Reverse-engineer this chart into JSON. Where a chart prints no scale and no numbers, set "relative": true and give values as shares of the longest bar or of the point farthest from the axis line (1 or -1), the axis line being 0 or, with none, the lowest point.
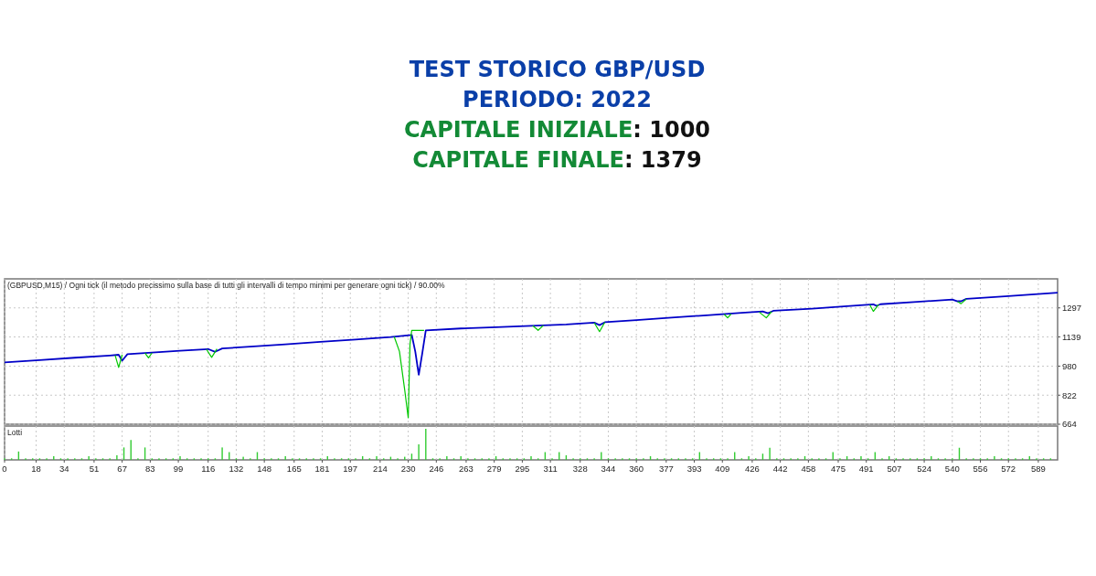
{
  "chart_data": [
    {
      "type": "line",
      "title": "TEST STORICO GBP/USD\nPERIODO: 2022",
      "subtitle": "(GBPUSD,M15) / Ogni tick (il metodo precissimo sulla base di tutti gli intervalli di tempo minimi per generare ogni tick) / 90.00%",
      "annotations": [
        "CAPITALE INIZIALE: 1000",
        "CAPITALE FINALE: 1379"
      ],
      "xlim": [
        0,
        600
      ],
      "xticks": [
        0,
        18,
        34,
        51,
        67,
        83,
        99,
        116,
        132,
        148,
        165,
        181,
        197,
        214,
        230,
        246,
        263,
        279,
        295,
        311,
        328,
        344,
        360,
        377,
        393,
        409,
        426,
        442,
        458,
        475,
        491,
        507,
        524,
        540,
        556,
        572,
        589
      ],
      "ylim": [
        664,
        1455
      ],
      "yticks": [
        664,
        822,
        980,
        1139,
        1297
      ],
      "grid": true,
      "tick_labels": "y",
      "marker": "none",
      "series": [
        {
          "color": "#0000c8",
          "x": [
            0,
            20,
            40,
            60,
            65,
            67,
            70,
            80,
            100,
            116,
            120,
            124,
            140,
            160,
            180,
            200,
            220,
            232,
            234,
            236,
            238,
            240,
            260,
            280,
            300,
            320,
            336,
            339,
            342,
            360,
            380,
            400,
            420,
            432,
            435,
            438,
            460,
            480,
            495,
            497,
            499,
            520,
            540,
            543,
            545,
            548,
            570,
            600
          ],
          "values": [
            1000,
            1013,
            1026,
            1038,
            1042,
            1010,
            1045,
            1051,
            1064,
            1073,
            1058,
            1076,
            1086,
            1099,
            1112,
            1125,
            1138,
            1150,
            1060,
            933,
            1050,
            1175,
            1185,
            1192,
            1199,
            1207,
            1217,
            1203,
            1219,
            1231,
            1244,
            1257,
            1270,
            1278,
            1268,
            1281,
            1293,
            1306,
            1316,
            1308,
            1317,
            1330,
            1342,
            1333,
            1333,
            1346,
            1360,
            1380
          ]
        },
        {
          "color": "#00c800",
          "x": [
            63,
            65,
            67
          ],
          "values": [
            1039,
            973,
            1042
          ]
        },
        {
          "color": "#00c800",
          "x": [
            80,
            82,
            84
          ],
          "values": [
            1051,
            1025,
            1052
          ]
        },
        {
          "color": "#00c800",
          "x": [
            115,
            118,
            121
          ],
          "values": [
            1072,
            1028,
            1074
          ]
        },
        {
          "color": "#00c800",
          "x": [
            222,
            225,
            228,
            230,
            231,
            232,
            239
          ],
          "values": [
            1140,
            1060,
            850,
            699,
            1100,
            1175,
            1175
          ]
        },
        {
          "color": "#00c800",
          "x": [
            301,
            304,
            307
          ],
          "values": [
            1200,
            1175,
            1202
          ]
        },
        {
          "color": "#00c800",
          "x": [
            336,
            339,
            342
          ],
          "values": [
            1216,
            1168,
            1219
          ]
        },
        {
          "color": "#00c800",
          "x": [
            410,
            412,
            414
          ],
          "values": [
            1262,
            1243,
            1264
          ]
        },
        {
          "color": "#00c800",
          "x": [
            430,
            434,
            437
          ],
          "values": [
            1274,
            1243,
            1277
          ]
        },
        {
          "color": "#00c800",
          "x": [
            493,
            495,
            498
          ],
          "values": [
            1313,
            1278,
            1315
          ]
        },
        {
          "color": "#00c800",
          "x": [
            543,
            545,
            548
          ],
          "values": [
            1332,
            1320,
            1345
          ]
        }
      ]
    },
    {
      "type": "bar",
      "ylabel": "Lotti",
      "relative": true,
      "color": "#33cc33",
      "xlim": [
        0,
        600
      ],
      "xticks": [
        0,
        18,
        34,
        51,
        67,
        83,
        99,
        116,
        132,
        148,
        165,
        181,
        197,
        214,
        230,
        246,
        263,
        279,
        295,
        311,
        328,
        344,
        360,
        377,
        393,
        409,
        426,
        442,
        458,
        475,
        491,
        507,
        524,
        540,
        556,
        572,
        589
      ],
      "grid": "x",
      "tick_labels": "x",
      "x": [
        0,
        4,
        8,
        12,
        16,
        20,
        24,
        28,
        32,
        36,
        40,
        44,
        48,
        52,
        56,
        60,
        64,
        68,
        72,
        76,
        80,
        84,
        88,
        92,
        96,
        100,
        104,
        108,
        112,
        116,
        120,
        124,
        128,
        132,
        136,
        140,
        144,
        148,
        152,
        156,
        160,
        164,
        168,
        172,
        176,
        180,
        184,
        188,
        192,
        196,
        200,
        204,
        208,
        212,
        216,
        220,
        224,
        228,
        232,
        236,
        240,
        244,
        248,
        252,
        256,
        260,
        264,
        268,
        272,
        276,
        280,
        284,
        288,
        292,
        296,
        300,
        304,
        308,
        312,
        316,
        320,
        324,
        328,
        332,
        336,
        340,
        344,
        348,
        352,
        356,
        360,
        364,
        368,
        372,
        376,
        380,
        384,
        388,
        392,
        396,
        400,
        404,
        408,
        412,
        416,
        420,
        424,
        428,
        432,
        436,
        440,
        444,
        448,
        452,
        456,
        460,
        464,
        468,
        472,
        476,
        480,
        484,
        488,
        492,
        496,
        500,
        504,
        508,
        512,
        516,
        520,
        524,
        528,
        532,
        536,
        540,
        544,
        548,
        552,
        556,
        560,
        564,
        568,
        572,
        576,
        580,
        584,
        588,
        592,
        596
      ],
      "values": [
        0.05,
        0.05,
        0.27,
        0.05,
        0.05,
        0.05,
        0.05,
        0.12,
        0.05,
        0.05,
        0.05,
        0.05,
        0.12,
        0.05,
        0.05,
        0.05,
        0.15,
        0.4,
        0.64,
        0.05,
        0.4,
        0.05,
        0.05,
        0.05,
        0.05,
        0.12,
        0.05,
        0.05,
        0.05,
        0.05,
        0.05,
        0.4,
        0.25,
        0.05,
        0.1,
        0.05,
        0.25,
        0.05,
        0.05,
        0.05,
        0.12,
        0.05,
        0.05,
        0.05,
        0.05,
        0.05,
        0.12,
        0.05,
        0.05,
        0.05,
        0.05,
        0.12,
        0.05,
        0.12,
        0.05,
        0.1,
        0.05,
        0.1,
        0.2,
        0.5,
        1,
        0.05,
        0.05,
        0.12,
        0.05,
        0.12,
        0.05,
        0.05,
        0.05,
        0.05,
        0.12,
        0.05,
        0.05,
        0.05,
        0.05,
        0.12,
        0.05,
        0.25,
        0.05,
        0.25,
        0.15,
        0.05,
        0.05,
        0.05,
        0.05,
        0.25,
        0.05,
        0.05,
        0.05,
        0.05,
        0.05,
        0.05,
        0.12,
        0.05,
        0.05,
        0.05,
        0.05,
        0.05,
        0.05,
        0.25,
        0.05,
        0.05,
        0.05,
        0.05,
        0.25,
        0.05,
        0.12,
        0.05,
        0.2,
        0.39,
        0.05,
        0.05,
        0.05,
        0.05,
        0.12,
        0.05,
        0.05,
        0.05,
        0.25,
        0.05,
        0.12,
        0.05,
        0.12,
        0.05,
        0.25,
        0.05,
        0.12,
        0.05,
        0.05,
        0.05,
        0.05,
        0.05,
        0.12,
        0.05,
        0.05,
        0.05,
        0.39,
        0.05,
        0.05,
        0.05,
        0.05,
        0.12,
        0.05,
        0.05,
        0.05,
        0.05,
        0.12,
        0.05,
        0.05,
        0.05
      ]
    }
  ]
}
